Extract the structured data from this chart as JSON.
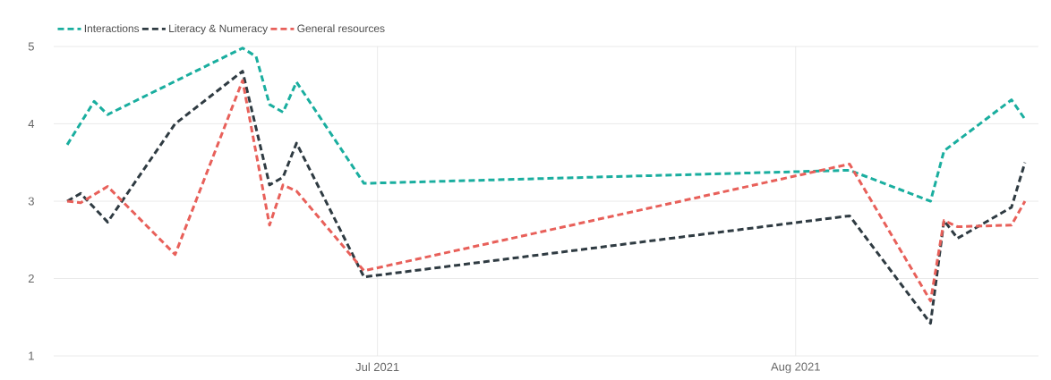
{
  "chart_data": {
    "type": "line",
    "xlim": [
      "2021-06-07",
      "2021-08-19"
    ],
    "xticks": [
      {
        "value": "2021-07-01",
        "label": "Jul 2021"
      },
      {
        "value": "2021-08-01",
        "label": "Aug 2021"
      }
    ],
    "ylim": [
      1,
      5
    ],
    "yticks": [
      1,
      2,
      3,
      4,
      5
    ],
    "grid": true,
    "legend": "top left",
    "line_style": "dashed",
    "marker": "none",
    "series": [
      {
        "name": "Interactions",
        "color": "#1aae9f",
        "x": [
          "2021-06-08",
          "2021-06-10",
          "2021-06-11",
          "2021-06-21",
          "2021-06-22",
          "2021-06-23",
          "2021-06-24",
          "2021-06-25",
          "2021-06-30",
          "2021-08-05",
          "2021-08-11",
          "2021-08-12",
          "2021-08-17",
          "2021-08-18"
        ],
        "values": [
          3.73,
          4.29,
          4.12,
          4.98,
          4.87,
          4.25,
          4.15,
          4.54,
          3.23,
          3.4,
          3.0,
          3.65,
          4.31,
          4.06
        ]
      },
      {
        "name": "Literacy & Numeracy",
        "color": "#2f3b42",
        "x": [
          "2021-06-08",
          "2021-06-09",
          "2021-06-11",
          "2021-06-16",
          "2021-06-21",
          "2021-06-23",
          "2021-06-24",
          "2021-06-25",
          "2021-06-30",
          "2021-08-05",
          "2021-08-11",
          "2021-08-12",
          "2021-08-13",
          "2021-08-17",
          "2021-08-18"
        ],
        "values": [
          3.0,
          3.1,
          2.73,
          4.0,
          4.68,
          3.21,
          3.31,
          3.75,
          2.02,
          2.81,
          1.42,
          2.75,
          2.52,
          2.92,
          3.5
        ]
      },
      {
        "name": "General resources",
        "color": "#e8605a",
        "x": [
          "2021-06-08",
          "2021-06-09",
          "2021-06-11",
          "2021-06-16",
          "2021-06-21",
          "2021-06-23",
          "2021-06-24",
          "2021-06-25",
          "2021-06-30",
          "2021-08-05",
          "2021-08-11",
          "2021-08-12",
          "2021-08-13",
          "2021-08-17",
          "2021-08-18"
        ],
        "values": [
          3.0,
          2.98,
          3.19,
          2.31,
          4.56,
          2.69,
          3.21,
          3.13,
          2.1,
          3.48,
          1.71,
          2.75,
          2.67,
          2.69,
          3.0
        ]
      }
    ]
  }
}
